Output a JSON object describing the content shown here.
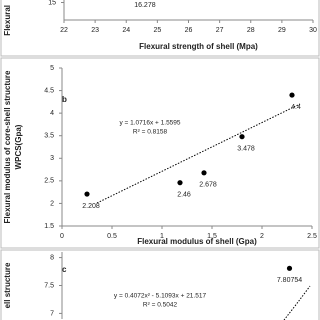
{
  "chart_data": [
    {
      "type": "scatter",
      "x_label": "Flexural strength of shell (Mpa)",
      "y_label": "Flexural",
      "x": [
        24.6
      ],
      "values": [
        16.278
      ],
      "value_labels": [
        "16.278"
      ],
      "xlim": [
        22,
        30
      ],
      "xticks": [
        22,
        23,
        24,
        25,
        26,
        27,
        28,
        29,
        30
      ],
      "ylim": [
        14.5,
        16.5
      ],
      "yticks": [
        15
      ],
      "color": "#000000"
    },
    {
      "type": "scatter",
      "panel": "b",
      "x_label": "Flexural modulus of shell (Gpa)",
      "y_label": [
        "Flexural modulus of core-shell structure",
        "WPCS(Gpa)"
      ],
      "x": [
        0.25,
        1.18,
        1.42,
        1.8,
        2.3
      ],
      "values": [
        2.208,
        2.46,
        2.678,
        3.478,
        4.4
      ],
      "value_labels": [
        "2.208",
        "2.46",
        "2.678",
        "3.478",
        "4.4"
      ],
      "xlim": [
        0,
        2.5
      ],
      "xticks": [
        0,
        0.5,
        1,
        1.5,
        2,
        2.5
      ],
      "ylim": [
        1.5,
        5
      ],
      "yticks": [
        1.5,
        2,
        2.5,
        3,
        3.5,
        4,
        4.5,
        5
      ],
      "equation": [
        "y = 1.0716x + 1.5595",
        "R² = 0.8158"
      ],
      "color": "#000000"
    },
    {
      "type": "scatter",
      "panel": "c",
      "y_label": "ell structure",
      "x": [
        9.1
      ],
      "values": [
        7.80754
      ],
      "value_labels": [
        "7.80754"
      ],
      "xlim": [
        0,
        10
      ],
      "ylim": [
        6.9,
        8.1
      ],
      "yticks": [
        7,
        7.5,
        8
      ],
      "equation": [
        "y = 0.4072x² - 5.1093x + 21.517",
        "R² = 0.5042"
      ],
      "color": "#000000"
    }
  ]
}
